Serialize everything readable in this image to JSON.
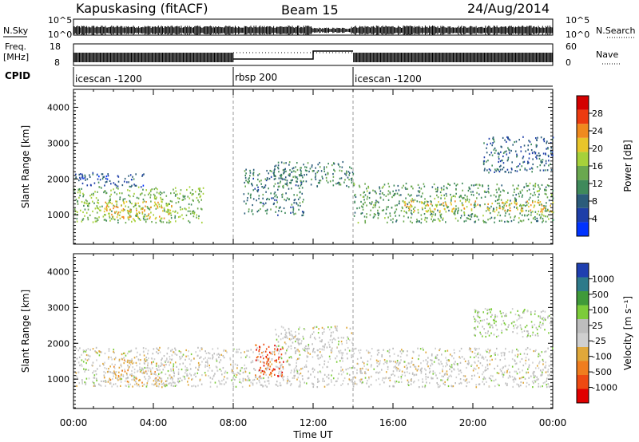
{
  "header": {
    "station": "Kapuskasing (fitACF)",
    "beam": "Beam 15",
    "date": "24/Aug/2014"
  },
  "strip": {
    "nsky_label": "N.Sky",
    "nsearch_label": "N.Search",
    "freq_label_1": "Freq.",
    "freq_label_2": "[MHz]",
    "nave_label": "Nave",
    "cpid_label": "CPID",
    "left_ticks_noise": [
      "10^5",
      "10^0"
    ],
    "right_ticks_noise": [
      "10^5",
      "10^0"
    ],
    "left_ticks_freq": [
      "18",
      "8"
    ],
    "right_ticks_freq": [
      "60",
      "0"
    ]
  },
  "cpid_segments": [
    {
      "label": "icescan -1200",
      "start": 0,
      "end": 8
    },
    {
      "label": "rbsp 200",
      "start": 8,
      "end": 14
    },
    {
      "label": "icescan -1200",
      "start": 14,
      "end": 24
    }
  ],
  "colors": {
    "power": [
      "#0033ff",
      "#1e3ea8",
      "#2b5c7a",
      "#3f8a5b",
      "#6aa84f",
      "#a6d13a",
      "#e8c52a",
      "#f08a1e",
      "#ec3b10",
      "#d40000"
    ],
    "velocity": [
      "#1f3fb0",
      "#2e7a8a",
      "#3f9a3a",
      "#7ccc3a",
      "#bdbdbd",
      "#cfcfcf",
      "#e0a83a",
      "#f07d1e",
      "#ee4a12",
      "#e00000"
    ]
  },
  "power_scale": {
    "label": "Power [dB]",
    "ticks": [
      "4",
      "8",
      "12",
      "16",
      "20",
      "24",
      "28"
    ]
  },
  "velocity_scale": {
    "label": "Velocity [m s⁻¹]",
    "ticks": [
      "1000",
      "500",
      "100",
      "25",
      "-25",
      "-100",
      "-500",
      "-1000"
    ]
  },
  "axis": {
    "ylabel": "Slant Range [km]",
    "xlabel": "Time UT",
    "yticks": [
      "1000",
      "2000",
      "3000",
      "4000"
    ],
    "xticks": [
      "00:00",
      "04:00",
      "08:00",
      "12:00",
      "16:00",
      "20:00",
      "00:00"
    ]
  },
  "chart_data": {
    "type": "heatmap",
    "title": "Kapuskasing (fitACF) Beam 15 24/Aug/2014",
    "xlabel": "Time UT",
    "ylabel": "Slant Range [km]",
    "xlim_hours": [
      0,
      24
    ],
    "ylim_km": [
      180,
      4500
    ],
    "panels": [
      {
        "name": "Power",
        "unit": "dB",
        "scale": [
          0,
          30
        ],
        "regions": [
          {
            "t0": 0.0,
            "t1": 6.5,
            "r0": 800,
            "r1": 1800,
            "value": 14
          },
          {
            "t0": 1.5,
            "t1": 5.0,
            "r0": 900,
            "r1": 1400,
            "value": 20
          },
          {
            "t0": 0.0,
            "t1": 3.5,
            "r0": 1800,
            "r1": 2200,
            "value": 6
          },
          {
            "t0": 8.5,
            "t1": 11.5,
            "r0": 1000,
            "r1": 2300,
            "value": 9
          },
          {
            "t0": 10.0,
            "t1": 14.0,
            "r0": 1800,
            "r1": 2500,
            "value": 10
          },
          {
            "t0": 14.0,
            "t1": 24.0,
            "r0": 800,
            "r1": 1900,
            "value": 12
          },
          {
            "t0": 16.5,
            "t1": 24.0,
            "r0": 1100,
            "r1": 1400,
            "value": 20
          },
          {
            "t0": 20.5,
            "t1": 24.0,
            "r0": 2200,
            "r1": 3200,
            "value": 7
          }
        ]
      },
      {
        "name": "Velocity",
        "unit": "m s⁻¹",
        "scale": [
          -1000,
          1000
        ],
        "regions": [
          {
            "t0": 0.0,
            "t1": 24.0,
            "r0": 800,
            "r1": 1900,
            "value": 0
          },
          {
            "t0": 1.5,
            "t1": 5.0,
            "r0": 800,
            "r1": 1600,
            "value": -200
          },
          {
            "t0": 9.0,
            "t1": 10.5,
            "r0": 1100,
            "r1": 2000,
            "value": -700
          },
          {
            "t0": 20.0,
            "t1": 24.0,
            "r0": 2200,
            "r1": 3000,
            "value": 150
          },
          {
            "t0": 10.0,
            "t1": 14.0,
            "r0": 1800,
            "r1": 2500,
            "value": 0
          }
        ]
      }
    ]
  }
}
